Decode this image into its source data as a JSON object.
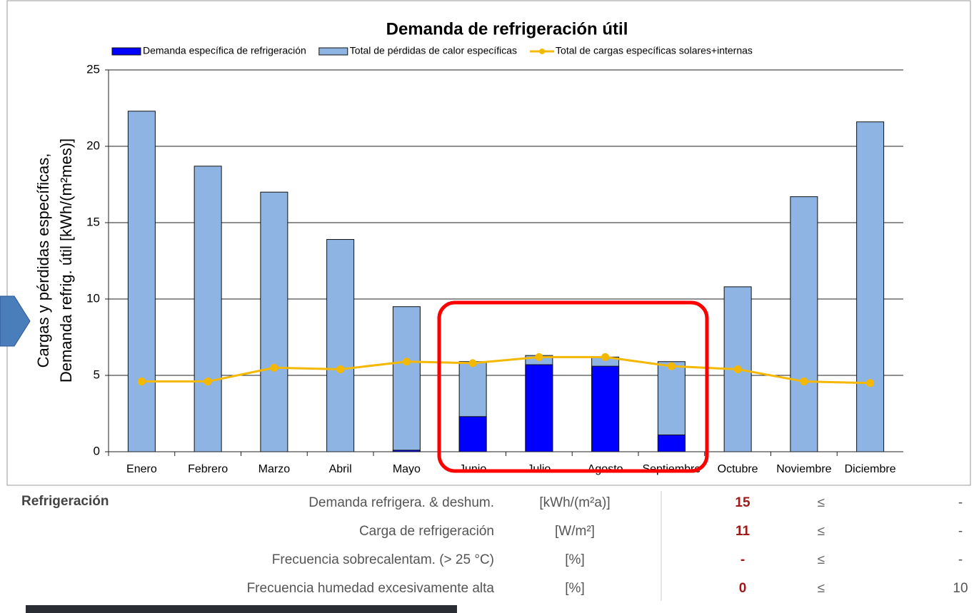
{
  "chart_data": {
    "type": "bar",
    "title": "Demanda de refrigeración útil",
    "y_label": [
      "Cargas y pérdidas específicas,",
      "Demanda refrig. útil [kWh/(m²mes)]"
    ],
    "categories": [
      "Enero",
      "Febrero",
      "Marzo",
      "Abril",
      "Mayo",
      "Junio",
      "Julio",
      "Agosto",
      "Septiembre",
      "Octubre",
      "Noviembre",
      "Diciembre"
    ],
    "series": [
      {
        "name": "Total de pérdidas de calor específicas",
        "kind": "bar",
        "color": "#8eb4e3",
        "values": [
          22.3,
          18.7,
          17.0,
          13.9,
          9.5,
          5.9,
          6.3,
          6.2,
          5.9,
          10.8,
          16.7,
          21.6
        ]
      },
      {
        "name": "Demanda específica de refrigeración",
        "kind": "bar",
        "color": "#0000ff",
        "values": [
          0,
          0,
          0,
          0,
          0.1,
          2.3,
          5.7,
          5.6,
          1.1,
          0,
          0,
          0
        ]
      },
      {
        "name": "Total de cargas específicas solares+internas",
        "kind": "line",
        "color": "#f5b800",
        "values": [
          4.6,
          4.6,
          5.5,
          5.4,
          5.9,
          5.8,
          6.2,
          6.2,
          5.6,
          5.4,
          4.6,
          4.5
        ]
      }
    ],
    "legend_order": [
      1,
      0,
      2
    ],
    "ylim": [
      0,
      25
    ],
    "yticks": [
      0,
      5,
      10,
      15,
      20,
      25
    ],
    "grid": true
  },
  "table": {
    "section": "Refrigeración",
    "rows": [
      [
        "Demanda refrigera. & deshum.",
        "[kWh/(m²a)]",
        "15",
        "≤",
        "-"
      ],
      [
        "Carga de refrigeración",
        "[W/m²]",
        "11",
        "≤",
        "-"
      ],
      [
        "Frecuencia sobrecalentam. (> 25 °C)",
        "[%]",
        "-",
        "≤",
        "-"
      ],
      [
        "Frecuencia humedad excesivamente alta",
        "[%]",
        "0",
        "≤",
        "10"
      ]
    ]
  }
}
